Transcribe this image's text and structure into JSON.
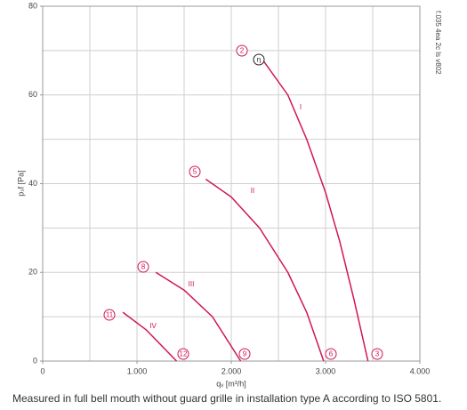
{
  "chart_data": {
    "type": "line",
    "ylabel": "pₛf [Pa]",
    "xlabel": "qᵥ [m³/h]",
    "side_note": "f.035 4ea 2c ls v802",
    "footnote": "Measured in full bell mouth without guard grille in installation type A according to ISO 5801.",
    "xlim": [
      0,
      4000
    ],
    "ylim": [
      0,
      80
    ],
    "xticks": [
      0,
      {
        "value": 1000,
        "label": "1.000"
      },
      {
        "value": 2000,
        "label": "2.000"
      },
      {
        "value": 3000,
        "label": "3.000"
      },
      {
        "value": 4000,
        "label": "4.000"
      }
    ],
    "yticks": [
      0,
      20,
      40,
      60,
      80
    ],
    "xgrid": [
      0,
      500,
      1000,
      1500,
      2000,
      2500,
      3000,
      3500,
      4000
    ],
    "ygrid": [
      0,
      10,
      20,
      30,
      40,
      50,
      60,
      70,
      80
    ],
    "series": [
      {
        "name": "I",
        "color": "#d0174f",
        "x": [
          2330,
          2600,
          2800,
          3000,
          3150,
          3300,
          3450
        ],
        "values": [
          68,
          60,
          50,
          38,
          27,
          14,
          0
        ]
      },
      {
        "name": "II",
        "color": "#d0174f",
        "x": [
          1730,
          2000,
          2300,
          2600,
          2800,
          2980
        ],
        "values": [
          41,
          37,
          30,
          20,
          11,
          0
        ]
      },
      {
        "name": "III",
        "color": "#d0174f",
        "x": [
          1200,
          1500,
          1800,
          2100
        ],
        "values": [
          20,
          16,
          10,
          0
        ]
      },
      {
        "name": "IV",
        "color": "#d0174f",
        "x": [
          850,
          1100,
          1420
        ],
        "values": [
          11,
          7,
          0
        ]
      }
    ],
    "annotations": [
      "2",
      "η",
      "5",
      "8",
      "11",
      "12",
      "9",
      "6",
      "3"
    ]
  }
}
